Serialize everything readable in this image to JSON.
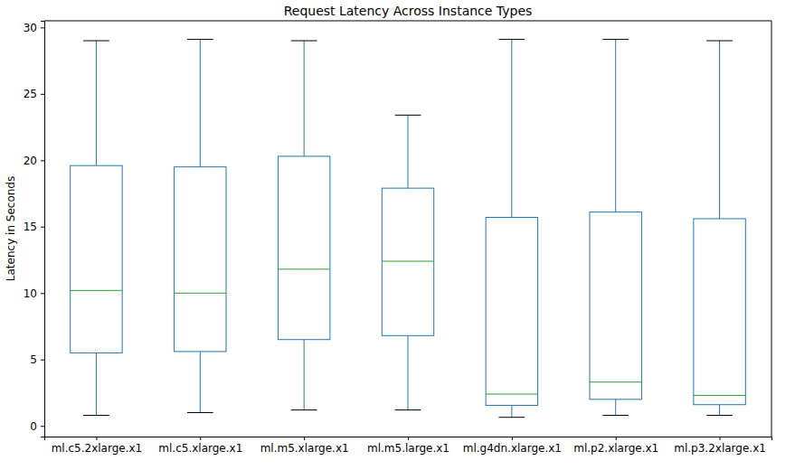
{
  "chart_data": {
    "type": "box",
    "title": "Request Latency Across Instance Types",
    "y_label": "Latency in Seconds",
    "categories": [
      "ml.c5.2xlarge.x1",
      "ml.c5.xlarge.x1",
      "ml.m5.xlarge.x1",
      "ml.m5.large.x1",
      "ml.g4dn.xlarge.x1",
      "ml.p2.xlarge.x1",
      "ml.p3.2xlarge.x1"
    ],
    "whisker_low": [
      0.8,
      1.0,
      1.2,
      1.2,
      0.65,
      0.8,
      0.8
    ],
    "q1": [
      5.5,
      5.6,
      6.5,
      6.8,
      1.55,
      2.0,
      1.6
    ],
    "median": [
      10.2,
      10.0,
      11.8,
      12.4,
      2.4,
      3.3,
      2.3
    ],
    "q3": [
      19.6,
      19.5,
      20.3,
      17.9,
      15.7,
      16.1,
      15.6
    ],
    "whisker_high": [
      29.0,
      29.1,
      29.0,
      23.4,
      29.1,
      29.1,
      29.0
    ],
    "color": "#1f77b4",
    "ylim": [
      -0.8,
      30.5
    ],
    "yticks": [
      0,
      5,
      10,
      15,
      20,
      25,
      30
    ],
    "grid": false
  }
}
